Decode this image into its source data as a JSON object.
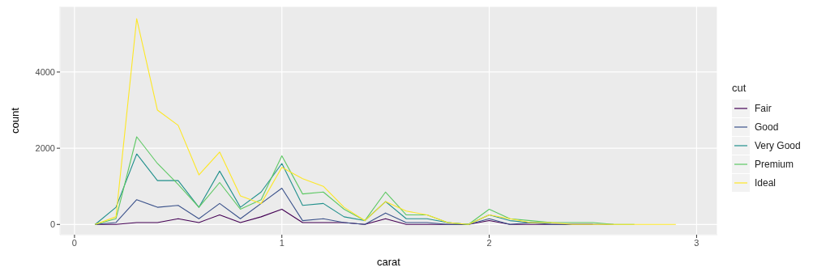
{
  "chart_data": {
    "type": "line",
    "xlabel": "carat",
    "ylabel": "count",
    "legend_title": "cut",
    "legend": "right",
    "grid": true,
    "marker": "none",
    "line_style": "solid",
    "x": [
      0.1,
      0.2,
      0.3,
      0.4,
      0.5,
      0.6,
      0.7,
      0.8,
      0.9,
      1.0,
      1.1,
      1.2,
      1.3,
      1.4,
      1.5,
      1.6,
      1.7,
      1.8,
      1.9,
      2.0,
      2.1,
      2.2,
      2.3,
      2.4,
      2.5,
      2.6,
      2.7,
      2.8,
      2.9
    ],
    "xlim": [
      -0.07,
      3.1
    ],
    "xticks": [
      0,
      1,
      2,
      3
    ],
    "ylim": [
      -270,
      5720
    ],
    "yticks": [
      0,
      2000,
      4000
    ],
    "series": [
      {
        "name": "Fair",
        "color": "#440154",
        "values": [
          0,
          0,
          50,
          50,
          150,
          50,
          250,
          50,
          200,
          400,
          50,
          50,
          50,
          0,
          150,
          0,
          0,
          0,
          0,
          100,
          0,
          0,
          0,
          0,
          0,
          null,
          null,
          null,
          null
        ]
      },
      {
        "name": "Good",
        "color": "#3b528b",
        "values": [
          0,
          50,
          650,
          450,
          500,
          150,
          550,
          150,
          550,
          950,
          100,
          150,
          50,
          0,
          300,
          50,
          50,
          0,
          0,
          150,
          0,
          50,
          0,
          0,
          0,
          0,
          null,
          null,
          null
        ]
      },
      {
        "name": "Very Good",
        "color": "#21908c",
        "values": [
          0,
          450,
          1850,
          1150,
          1150,
          450,
          1400,
          450,
          850,
          1600,
          500,
          550,
          200,
          100,
          600,
          150,
          150,
          50,
          0,
          250,
          100,
          50,
          50,
          null,
          null,
          null,
          null,
          null,
          null
        ]
      },
      {
        "name": "Premium",
        "color": "#5dc863",
        "values": [
          0,
          150,
          2300,
          1600,
          1050,
          450,
          1100,
          400,
          650,
          1800,
          800,
          850,
          400,
          100,
          850,
          250,
          250,
          50,
          0,
          400,
          150,
          100,
          50,
          50,
          50,
          0,
          0,
          null,
          null
        ]
      },
      {
        "name": "Ideal",
        "color": "#fde725",
        "values": [
          0,
          200,
          5400,
          3000,
          2600,
          1300,
          1900,
          750,
          550,
          1500,
          1200,
          1000,
          450,
          100,
          600,
          350,
          250,
          50,
          0,
          250,
          150,
          50,
          50,
          0,
          0,
          0,
          0,
          0,
          0
        ]
      }
    ]
  }
}
